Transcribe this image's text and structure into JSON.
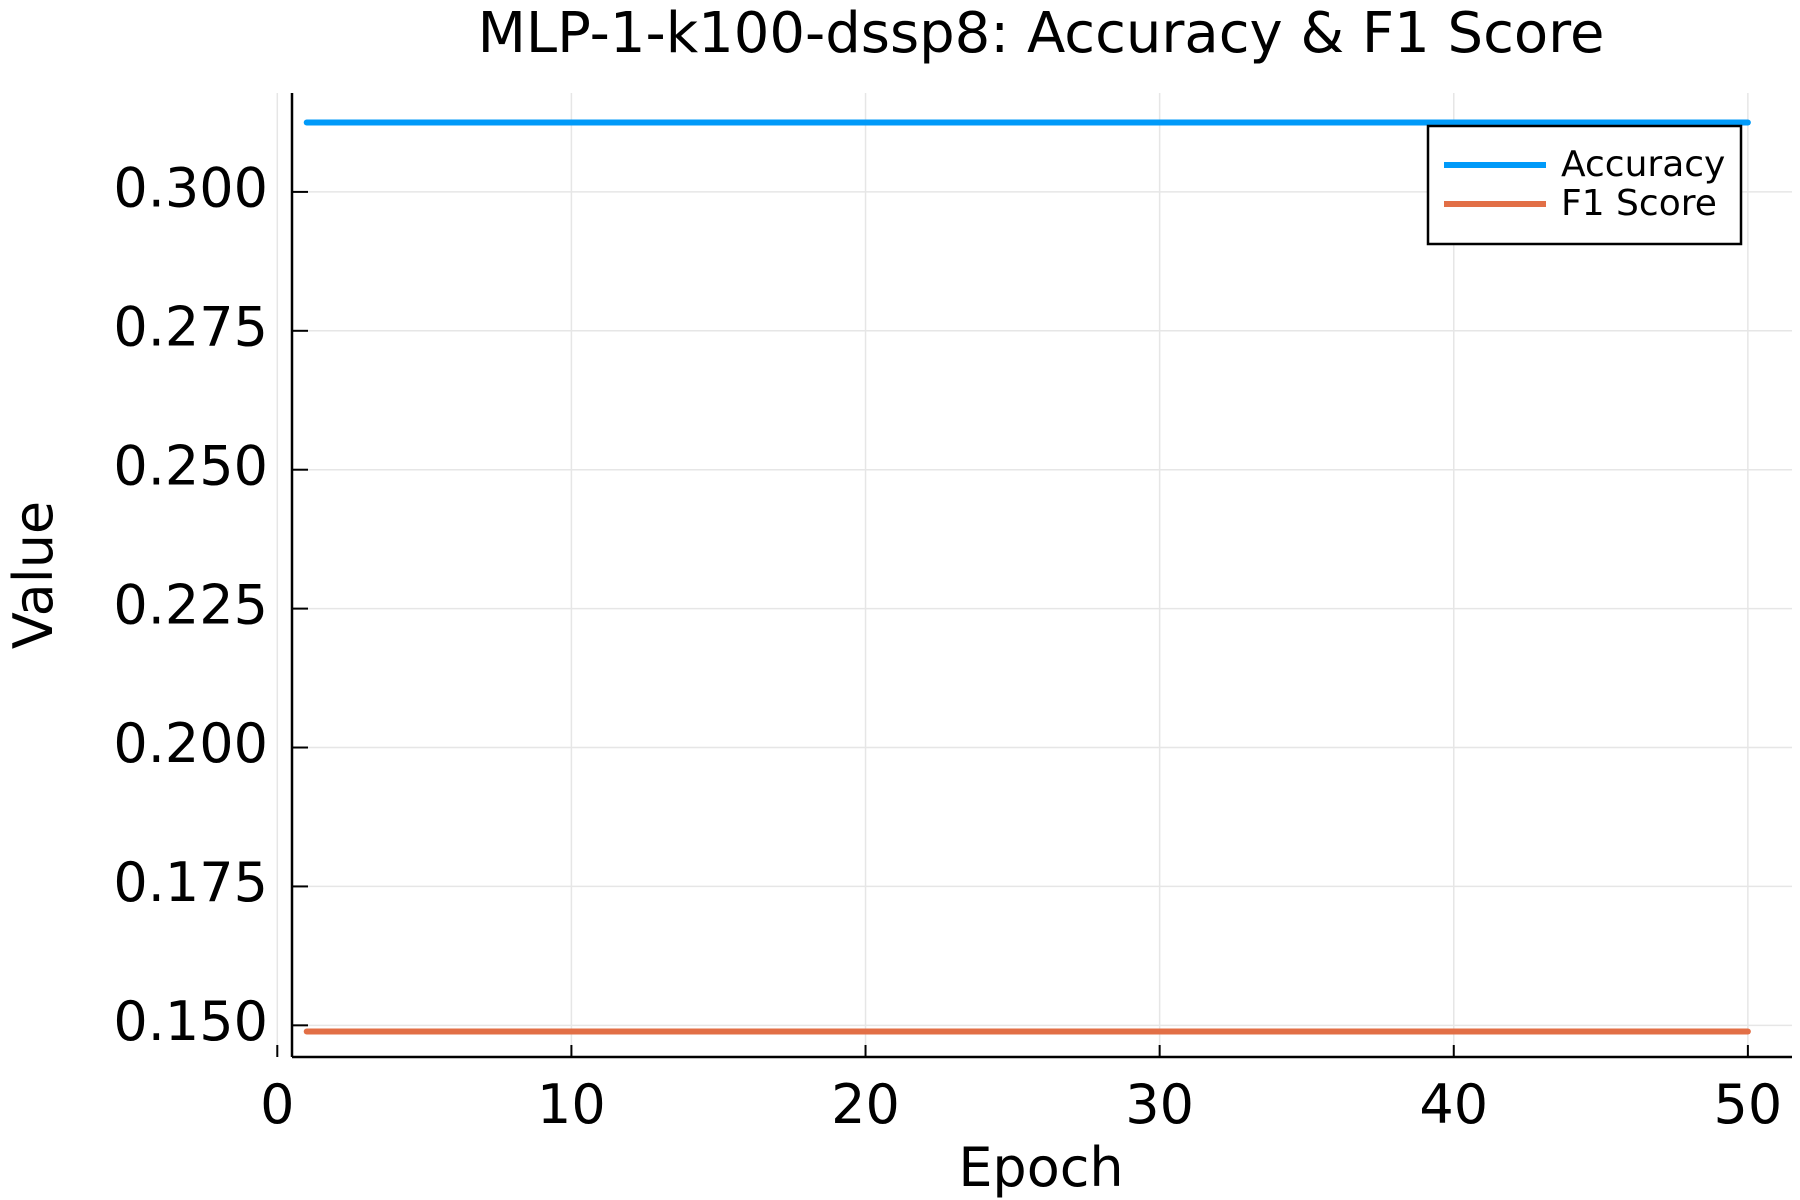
{
  "chart_data": {
    "type": "line",
    "title": "MLP-1-k100-dssp8: Accuracy & F1 Score",
    "xlabel": "Epoch",
    "ylabel": "Value",
    "xlim": [
      0.5,
      51.5
    ],
    "ylim": [
      0.1443,
      0.3178
    ],
    "xticks": [
      0,
      10,
      20,
      30,
      40,
      50
    ],
    "yticks": [
      0.15,
      0.175,
      0.2,
      0.225,
      0.25,
      0.275,
      0.3
    ],
    "ytick_labels": [
      "0.150",
      "0.175",
      "0.200",
      "0.225",
      "0.250",
      "0.275",
      "0.300"
    ],
    "grid": true,
    "legend_position": "top-right",
    "series": [
      {
        "name": "Accuracy",
        "color": "#009af9",
        "x": [
          1,
          50
        ],
        "y": [
          0.3125,
          0.3125
        ]
      },
      {
        "name": "F1 Score",
        "color": "#e26f46",
        "x": [
          1,
          50
        ],
        "y": [
          0.1489,
          0.1489
        ]
      }
    ]
  }
}
